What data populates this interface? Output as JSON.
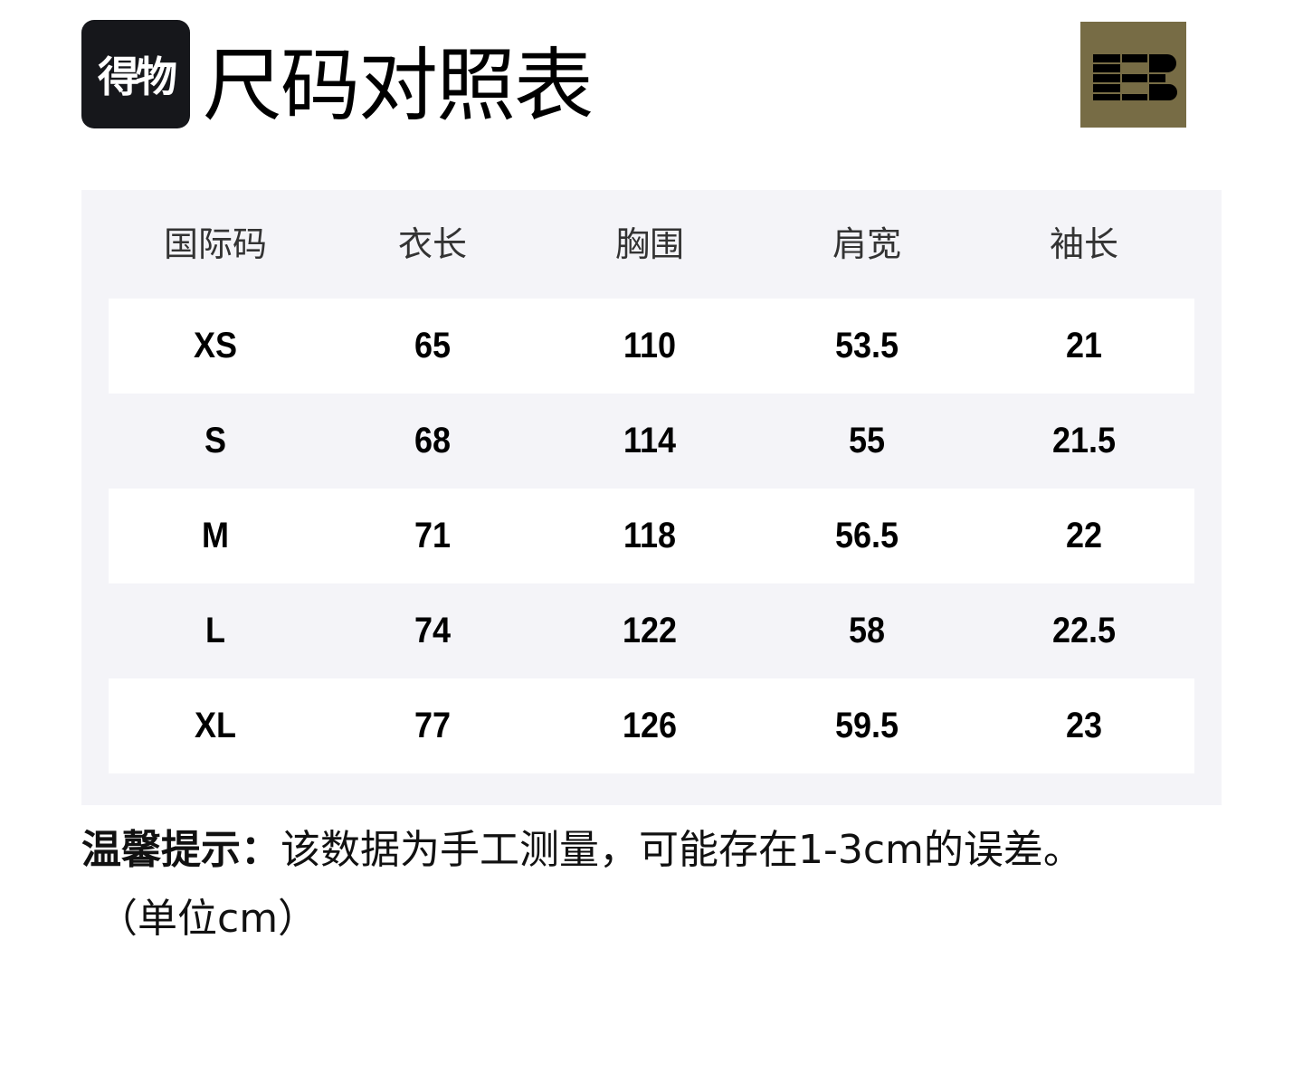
{
  "brand": {
    "logo_text": "得物",
    "title": "尺码对照表",
    "partner_logo": "EB",
    "partner_color": "#776c45"
  },
  "table": {
    "headers": [
      "国际码",
      "衣长",
      "胸围",
      "肩宽",
      "袖长"
    ],
    "rows": [
      [
        "XS",
        "65",
        "110",
        "53.5",
        "21"
      ],
      [
        "S",
        "68",
        "114",
        "55",
        "21.5"
      ],
      [
        "M",
        "71",
        "118",
        "56.5",
        "22"
      ],
      [
        "L",
        "74",
        "122",
        "58",
        "22.5"
      ],
      [
        "XL",
        "77",
        "126",
        "59.5",
        "23"
      ]
    ]
  },
  "note": {
    "label": "温馨提示：",
    "text": "该数据为手工测量，可能存在1-3cm的误差。",
    "unit": "（单位cm）"
  }
}
